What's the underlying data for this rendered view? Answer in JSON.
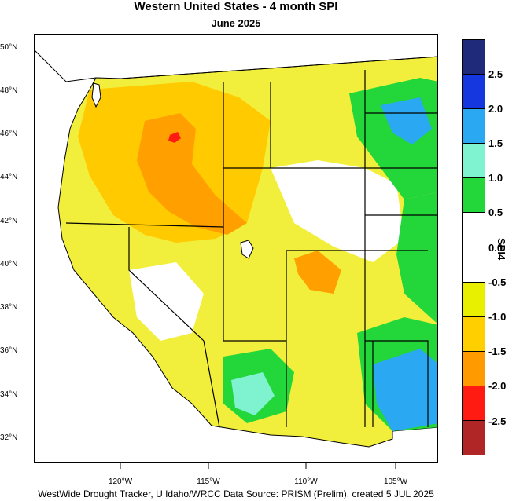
{
  "title": "Western United States - 4 month SPI",
  "subtitle": "June 2025",
  "footer": "WestWide Drought Tracker, U Idaho/WRCC Data Source: PRISM (Prelim), created  5 JUL 2025",
  "latitude_labels": [
    "50°N",
    "48°N",
    "46°N",
    "44°N",
    "42°N",
    "40°N",
    "38°N",
    "36°N",
    "34°N",
    "32°N"
  ],
  "longitude_labels": [
    "120°W",
    "115°W",
    "110°W",
    "105°W"
  ],
  "legend": {
    "title": "SPI4",
    "bins": [
      {
        "color": "#1f2a7a"
      },
      {
        "color": "#1537e0"
      },
      {
        "color": "#2aa9f2"
      },
      {
        "color": "#7ff2cf"
      },
      {
        "color": "#23d63a"
      },
      {
        "color": "#ffffff"
      },
      {
        "color": "#ffffff"
      },
      {
        "color": "#e8f000"
      },
      {
        "color": "#ffcf00"
      },
      {
        "color": "#ff9a00"
      },
      {
        "color": "#ff1a12"
      },
      {
        "color": "#b02525"
      }
    ],
    "labels": [
      "2.5",
      "2.0",
      "1.5",
      "1.0",
      "0.5",
      "0.0",
      "-0.5",
      "-1.0",
      "-1.5",
      "-2.0",
      "-2.5"
    ]
  }
}
